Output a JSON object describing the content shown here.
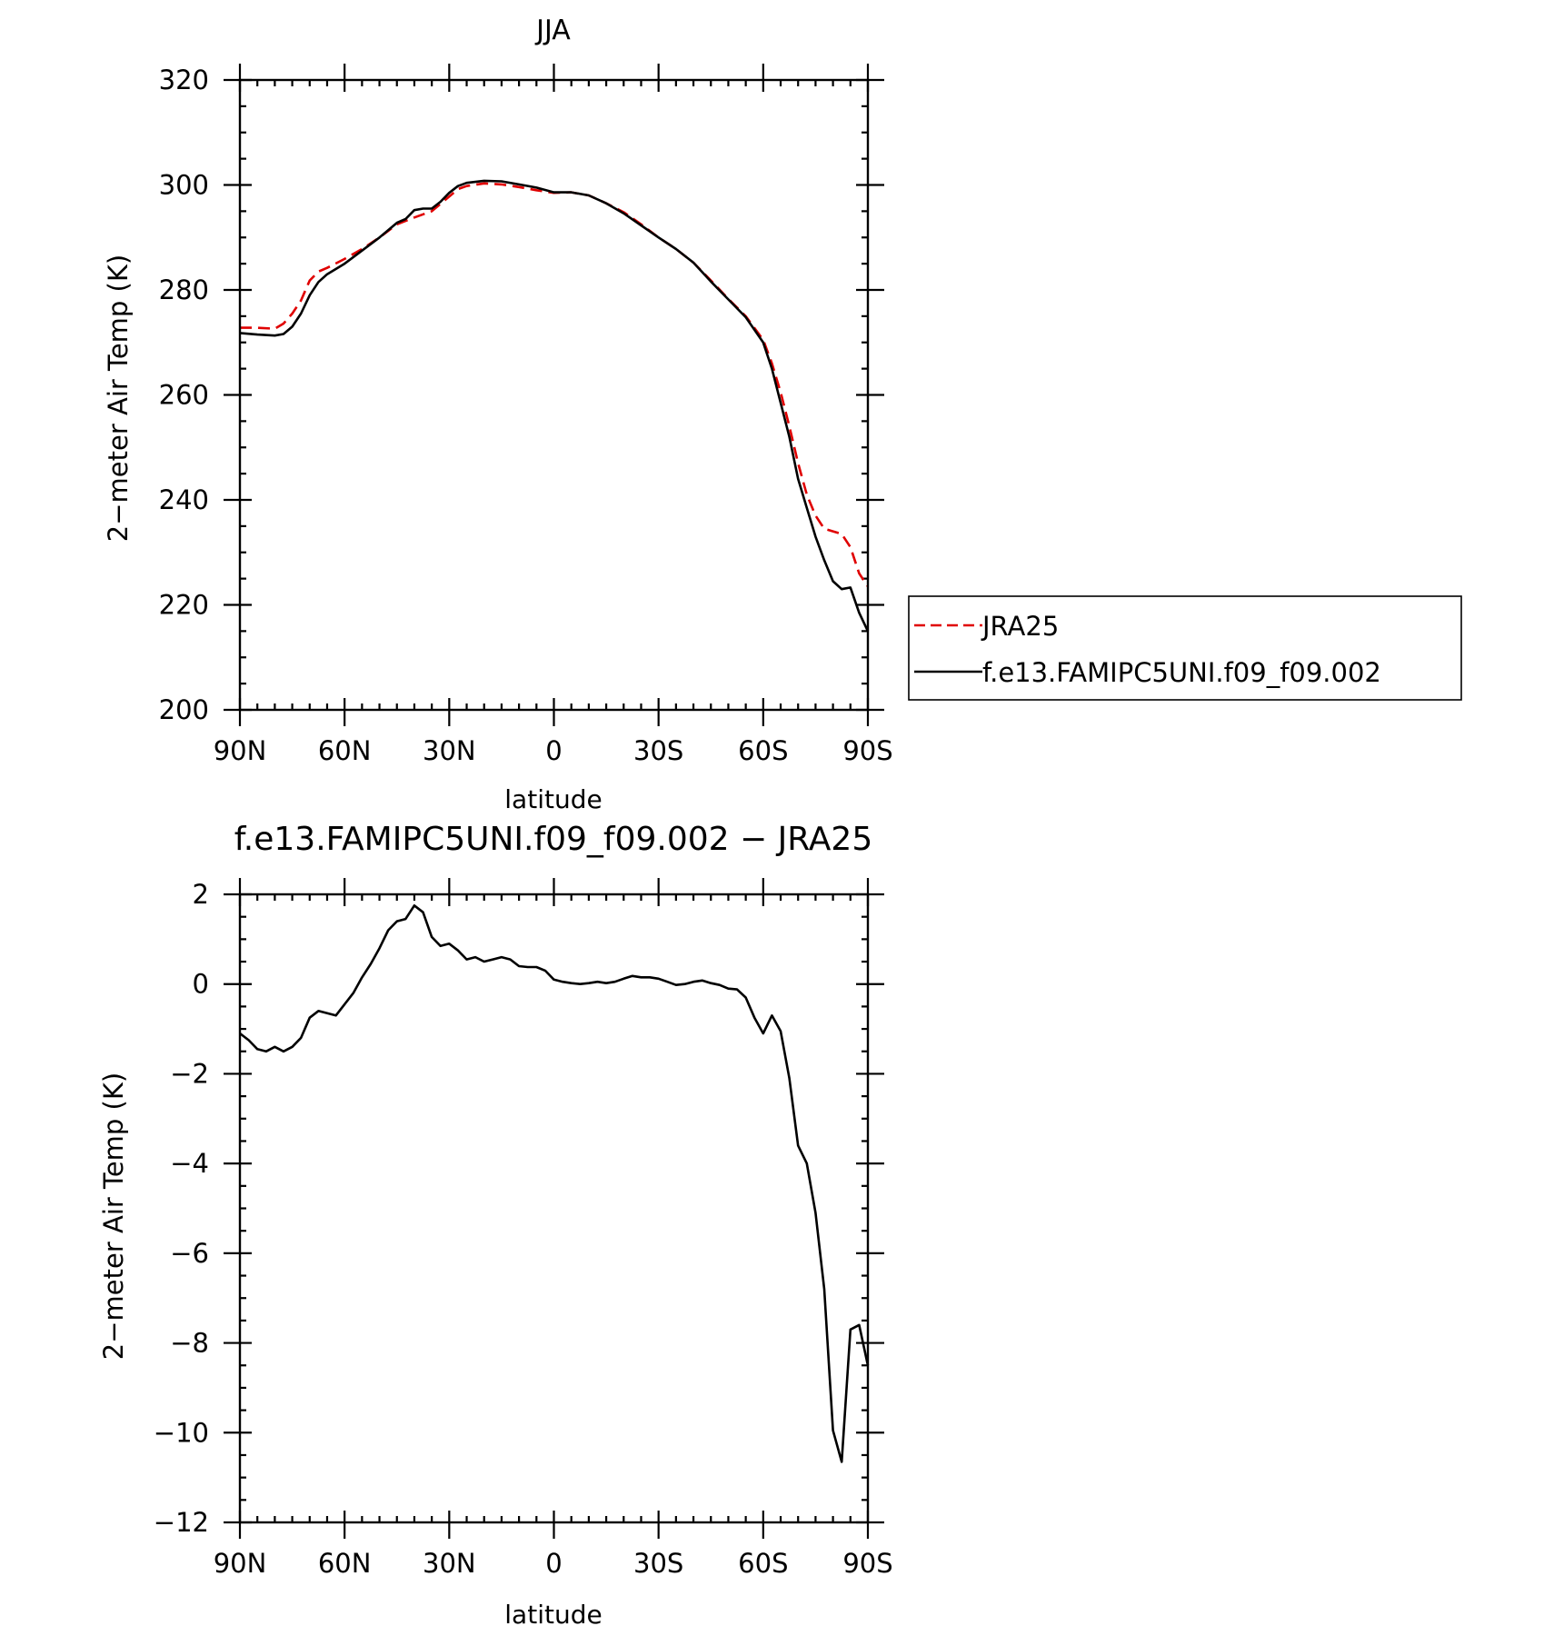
{
  "chart_data": [
    {
      "type": "line",
      "title": "JJA",
      "xlabel": "latitude",
      "ylabel": "2−meter Air Temp (K)",
      "xlim": [
        90,
        -90
      ],
      "ylim": [
        200,
        320
      ],
      "xticks": [
        90,
        60,
        30,
        0,
        -30,
        -60,
        -90
      ],
      "xtick_labels": [
        "90N",
        "60N",
        "30N",
        "0",
        "30S",
        "60S",
        "90S"
      ],
      "yticks": [
        200,
        220,
        240,
        260,
        280,
        300,
        320
      ],
      "ytick_labels": [
        "200",
        "220",
        "240",
        "260",
        "280",
        "300",
        "320"
      ],
      "grid": false,
      "legend": {
        "position": "right",
        "entries": [
          {
            "label": "JRA25",
            "color": "#e00000",
            "style": "dashed"
          },
          {
            "label": "f.e13.FAMIPC5UNI.f09_f09.002",
            "color": "#000000",
            "style": "solid"
          }
        ]
      },
      "series": [
        {
          "name": "JRA25",
          "color": "#e00000",
          "style": "dashed",
          "x": [
            90,
            85,
            80,
            77.5,
            75,
            72.5,
            70,
            67.5,
            65,
            60,
            55,
            50,
            45,
            40,
            35,
            30,
            27.5,
            25,
            20,
            15,
            10,
            5,
            0,
            -5,
            -10,
            -15,
            -20,
            -25,
            -30,
            -35,
            -40,
            -45,
            -50,
            -55,
            -60,
            -62.5,
            -65,
            -67.5,
            -70,
            -72.5,
            -75,
            -77.5,
            -80,
            -82.5,
            -85,
            -87.5,
            -90
          ],
          "y": [
            272.8,
            272.8,
            272.6,
            273.6,
            275.5,
            278.0,
            281.8,
            283.5,
            284.2,
            285.9,
            287.8,
            290.0,
            292.5,
            293.8,
            295.0,
            297.8,
            299.2,
            299.8,
            300.3,
            300.1,
            299.6,
            299.0,
            298.5,
            298.6,
            298.0,
            296.5,
            294.8,
            292.5,
            290.0,
            287.8,
            285.2,
            281.8,
            278.3,
            275.0,
            270.5,
            266.0,
            260.5,
            254.0,
            247.0,
            241.0,
            237.0,
            234.5,
            234.0,
            233.5,
            231.0,
            226.0,
            223.5
          ]
        },
        {
          "name": "f.e13.FAMIPC5UNI.f09_f09.002",
          "color": "#000000",
          "style": "solid",
          "x": [
            90,
            85,
            80,
            77.5,
            75,
            72.5,
            70,
            67.5,
            65,
            60,
            55,
            50,
            45,
            42.5,
            40,
            37.5,
            35,
            32.5,
            30,
            27.5,
            25,
            20,
            15,
            10,
            5,
            0,
            -5,
            -10,
            -15,
            -20,
            -25,
            -30,
            -35,
            -40,
            -45,
            -50,
            -55,
            -60,
            -62.5,
            -65,
            -67.5,
            -70,
            -72.5,
            -75,
            -77.5,
            -80,
            -82.5,
            -85,
            -87.5,
            -90
          ],
          "y": [
            271.8,
            271.5,
            271.3,
            271.6,
            273.0,
            275.5,
            279.0,
            281.5,
            283.0,
            285.0,
            287.5,
            290.0,
            292.8,
            293.5,
            295.2,
            295.5,
            295.5,
            296.8,
            298.5,
            299.8,
            300.4,
            300.8,
            300.7,
            300.1,
            299.5,
            298.6,
            298.6,
            298.0,
            296.5,
            294.6,
            292.3,
            290.0,
            287.8,
            285.2,
            281.6,
            278.2,
            274.8,
            270.0,
            265.0,
            258.5,
            252.0,
            244.0,
            238.5,
            233.0,
            228.5,
            224.5,
            223.0,
            223.3,
            218.5,
            215.0
          ]
        }
      ]
    },
    {
      "type": "line",
      "title": "f.e13.FAMIPC5UNI.f09_f09.002 − JRA25",
      "xlabel": "latitude",
      "ylabel": "2−meter Air Temp (K)",
      "xlim": [
        90,
        -90
      ],
      "ylim": [
        -12,
        2
      ],
      "xticks": [
        90,
        60,
        30,
        0,
        -30,
        -60,
        -90
      ],
      "xtick_labels": [
        "90N",
        "60N",
        "30N",
        "0",
        "30S",
        "60S",
        "90S"
      ],
      "yticks": [
        -12,
        -10,
        -8,
        -6,
        -4,
        -2,
        0,
        2
      ],
      "ytick_labels": [
        "−12",
        "−10",
        "−8",
        "−6",
        "−4",
        "−2",
        "0",
        "2"
      ],
      "grid": false,
      "series": [
        {
          "color": "#000000",
          "style": "solid",
          "x": [
            90,
            87.5,
            85,
            82.5,
            80,
            77.5,
            75,
            72.5,
            70,
            67.5,
            65,
            62.5,
            60,
            57.5,
            55,
            52.5,
            50,
            47.5,
            45,
            42.5,
            40,
            37.5,
            35,
            32.5,
            30,
            27.5,
            25,
            22.5,
            20,
            17.5,
            15,
            12.5,
            10,
            7.5,
            5,
            2.5,
            0,
            -2.5,
            -5,
            -7.5,
            -10,
            -12.5,
            -15,
            -17.5,
            -20,
            -22.5,
            -25,
            -27.5,
            -30,
            -32.5,
            -35,
            -37.5,
            -40,
            -42.5,
            -45,
            -47.5,
            -50,
            -52.5,
            -55,
            -57.5,
            -60,
            -62.5,
            -65,
            -67.5,
            -70,
            -72.5,
            -75,
            -77.5,
            -80,
            -82.5,
            -85,
            -87.5,
            -90
          ],
          "y": [
            -1.1,
            -1.25,
            -1.45,
            -1.5,
            -1.4,
            -1.5,
            -1.4,
            -1.2,
            -0.75,
            -0.6,
            -0.65,
            -0.7,
            -0.45,
            -0.2,
            0.15,
            0.45,
            0.8,
            1.2,
            1.4,
            1.45,
            1.75,
            1.6,
            1.05,
            0.85,
            0.9,
            0.75,
            0.55,
            0.6,
            0.5,
            0.55,
            0.6,
            0.55,
            0.4,
            0.38,
            0.38,
            0.3,
            0.1,
            0.05,
            0.02,
            0.0,
            0.02,
            0.05,
            0.02,
            0.05,
            0.12,
            0.18,
            0.15,
            0.15,
            0.12,
            0.05,
            -0.02,
            0.0,
            0.05,
            0.08,
            0.02,
            -0.02,
            -0.1,
            -0.12,
            -0.3,
            -0.75,
            -1.1,
            -0.7,
            -1.05,
            -2.1,
            -3.6,
            -4.0,
            -5.1,
            -6.8,
            -9.95,
            -10.65,
            -7.7,
            -7.6,
            -8.5
          ]
        }
      ]
    }
  ]
}
